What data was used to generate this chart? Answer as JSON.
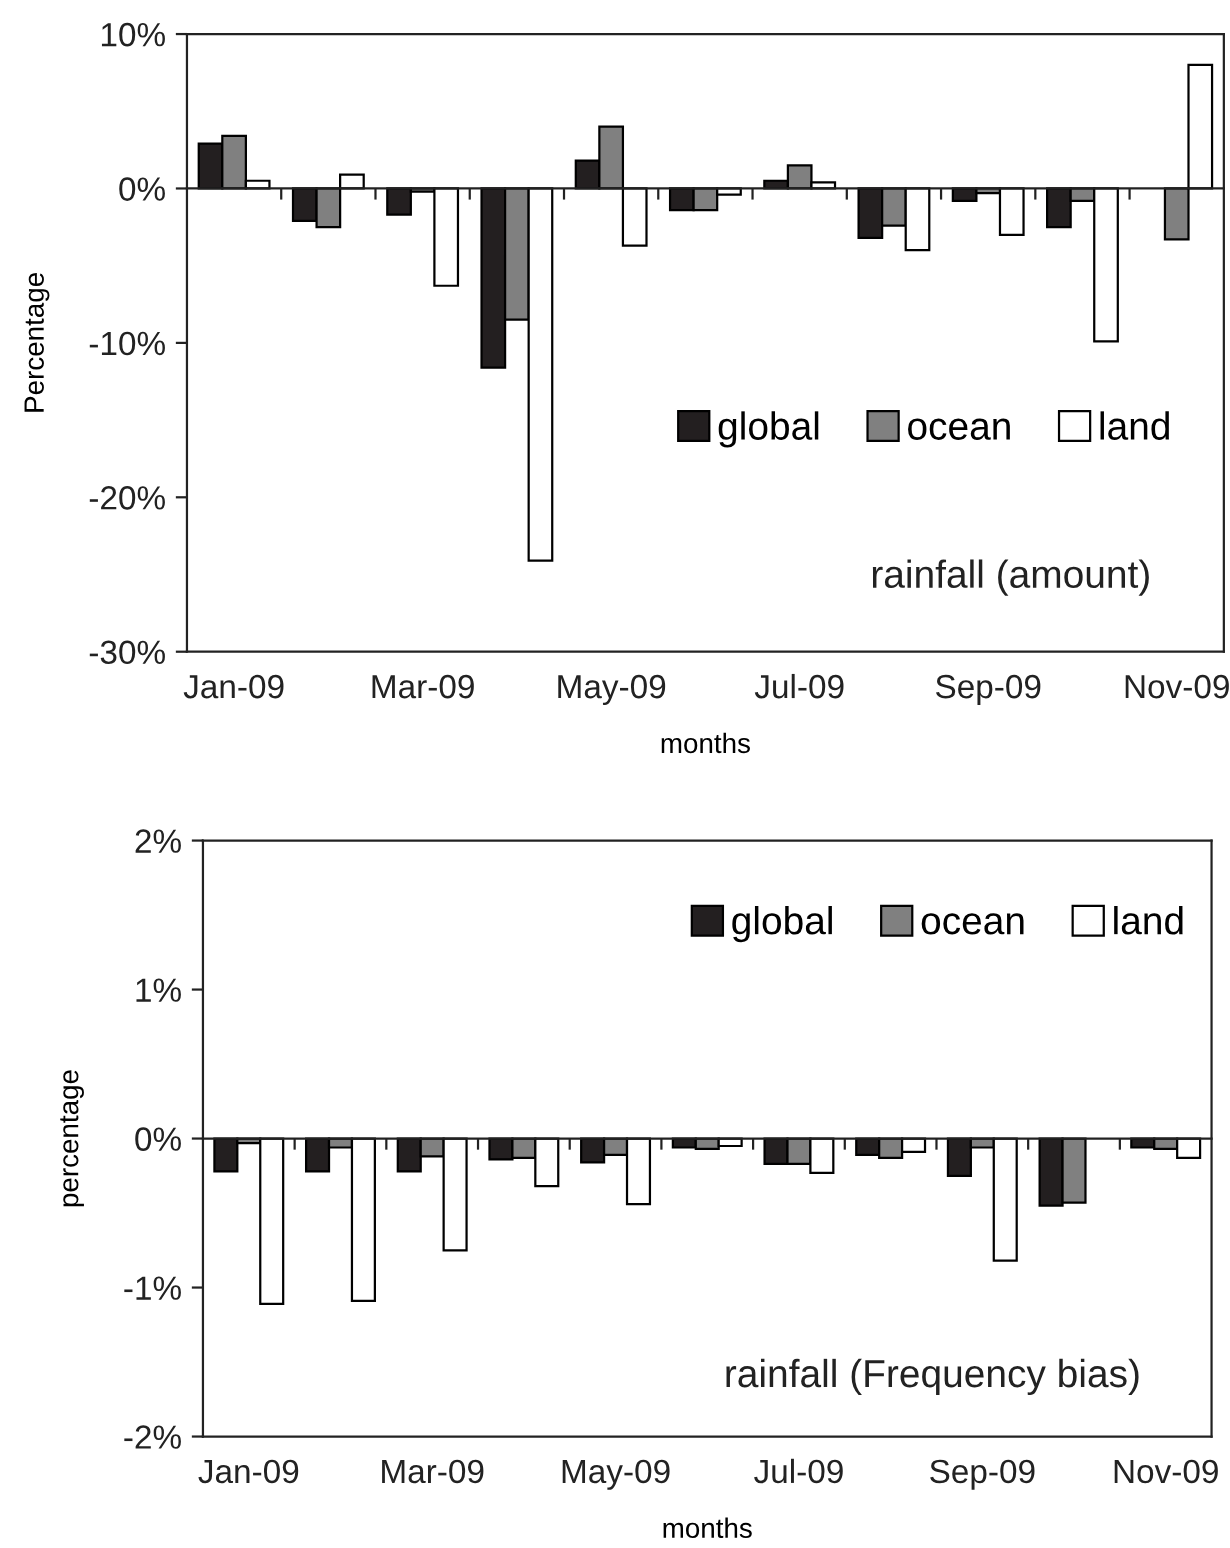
{
  "chart_data": [
    {
      "type": "bar",
      "xlabel": "months",
      "ylabel": "Percentage",
      "annotations": [
        "rainfall (amount)"
      ],
      "categories": [
        "Jan-09",
        null,
        "Mar-09",
        null,
        "May-09",
        null,
        "Jul-09",
        null,
        "Sep-09",
        null,
        "Nov-09"
      ],
      "series": [
        {
          "name": "global",
          "color": "#231f20",
          "values": [
            2.9,
            -2.1,
            -1.7,
            -11.6,
            1.8,
            -1.4,
            0.5,
            -3.2,
            -0.8,
            -2.5,
            null
          ]
        },
        {
          "name": "ocean",
          "color": "#808080",
          "values": [
            3.4,
            -2.5,
            -0.2,
            -8.5,
            4.0,
            -1.4,
            1.5,
            -2.4,
            -0.3,
            -0.8,
            -3.3
          ]
        },
        {
          "name": "land",
          "color": "#ffffff",
          "values": [
            0.5,
            0.9,
            -6.3,
            -24.1,
            -3.7,
            -0.4,
            0.4,
            -4.0,
            -3.0,
            -9.9,
            8.0
          ]
        }
      ],
      "ylim": [
        -30,
        10
      ],
      "yticks": [
        {
          "value": -30,
          "label": "-30%"
        },
        {
          "value": -20,
          "label": "-20%"
        },
        {
          "value": -10,
          "label": "-10%"
        },
        {
          "value": 0,
          "label": "0%"
        },
        {
          "value": 10,
          "label": "10%"
        }
      ],
      "legend": "center right"
    },
    {
      "type": "bar",
      "xlabel": "months",
      "ylabel": "percentage",
      "annotations": [
        "rainfall (Frequency bias)"
      ],
      "categories": [
        "Jan-09",
        null,
        "Mar-09",
        null,
        "May-09",
        null,
        "Jul-09",
        null,
        "Sep-09",
        null,
        "Nov-09"
      ],
      "series": [
        {
          "name": "global",
          "color": "#231f20",
          "values": [
            -0.22,
            -0.22,
            -0.22,
            -0.14,
            -0.16,
            -0.06,
            -0.17,
            -0.11,
            -0.25,
            -0.45,
            -0.06
          ]
        },
        {
          "name": "ocean",
          "color": "#808080",
          "values": [
            -0.03,
            -0.06,
            -0.12,
            -0.13,
            -0.11,
            -0.07,
            -0.17,
            -0.13,
            -0.06,
            -0.43,
            -0.07
          ]
        },
        {
          "name": "land",
          "color": "#ffffff",
          "values": [
            -1.11,
            -1.09,
            -0.75,
            -0.32,
            -0.44,
            -0.05,
            -0.23,
            -0.09,
            -0.82,
            null,
            -0.13
          ]
        }
      ],
      "ylim": [
        -2,
        2
      ],
      "yticks": [
        {
          "value": -2,
          "label": "-2%"
        },
        {
          "value": -1,
          "label": "-1%"
        },
        {
          "value": 0,
          "label": "0%"
        },
        {
          "value": 1,
          "label": "1%"
        },
        {
          "value": 2,
          "label": "2%"
        }
      ],
      "legend": "top right"
    }
  ]
}
